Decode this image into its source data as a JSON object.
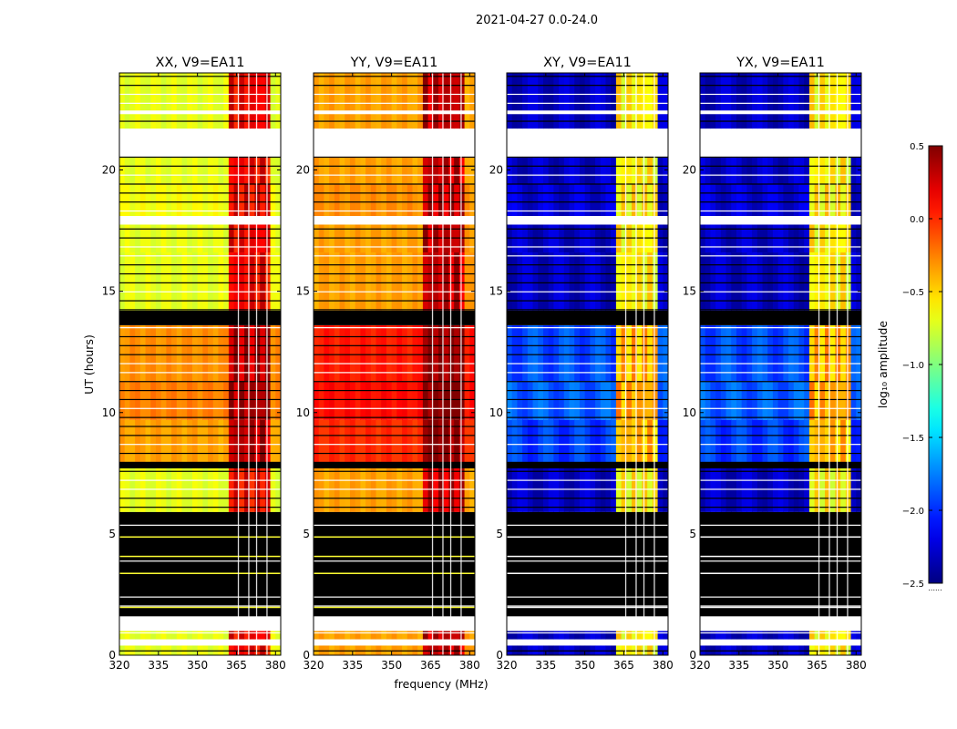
{
  "figure": {
    "suptitle": "2021-04-27 0.0-24.0",
    "xlabel": "frequency (MHz)",
    "ylabel": "UT (hours)",
    "colorbar_label": "log₁₀ amplitude",
    "colorbar_footer": "......"
  },
  "chart_data": {
    "type": "heatmap",
    "colormap": "jet",
    "x": {
      "label": "frequency (MHz)",
      "range": [
        320,
        382
      ],
      "ticks": [
        320,
        335,
        350,
        365,
        380
      ],
      "tick_labels": [
        "320",
        "335",
        "350",
        "365",
        "380"
      ]
    },
    "y": {
      "label": "UT (hours)",
      "range": [
        0,
        24
      ],
      "ticks": [
        0,
        5,
        10,
        15,
        20
      ],
      "tick_labels": [
        "0",
        "5",
        "10",
        "15",
        "20"
      ]
    },
    "colorbar": {
      "label": "log₁₀ amplitude",
      "range": [
        -2.5,
        0.5
      ],
      "ticks": [
        0.5,
        0.0,
        -0.5,
        -1.0,
        -1.5,
        -2.0,
        -2.5
      ],
      "tick_labels": [
        "0.5",
        "0.0",
        "−0.5",
        "−1.0",
        "−1.5",
        "−2.0",
        "−2.5"
      ]
    },
    "panels": [
      {
        "title": "XX, V9=EA11",
        "pol": "XX",
        "base_level": -0.7,
        "rfi_level": 0.15
      },
      {
        "title": "YY, V9=EA11",
        "pol": "YY",
        "base_level": -0.35,
        "rfi_level": 0.3
      },
      {
        "title": "XY, V9=EA11",
        "pol": "XY",
        "base_level": -2.3,
        "rfi_level": -0.6
      },
      {
        "title": "YX, V9=EA11",
        "pol": "YX",
        "base_level": -2.3,
        "rfi_level": -0.6
      }
    ],
    "rfi_band_mhz": [
      363,
      377
    ],
    "rfi_gap_lines_mhz": [
      365.5,
      369.5,
      372.5,
      376.5
    ],
    "no_data_hours": [
      [
        0.4,
        0.65
      ],
      [
        1.0,
        1.6
      ],
      [
        20.55,
        21.7
      ],
      [
        22.3,
        22.45
      ],
      [
        17.75,
        18.1
      ]
    ],
    "flagged_hours": [
      [
        1.6,
        5.9
      ],
      [
        13.6,
        14.2
      ],
      [
        7.7,
        7.95
      ]
    ],
    "segment_levels": [
      {
        "t": [
          0.0,
          0.4
        ],
        "offset": 0.0
      },
      {
        "t": [
          0.65,
          1.0
        ],
        "offset": 0.0
      },
      {
        "t": [
          5.9,
          7.7
        ],
        "offset": 0.0
      },
      {
        "t": [
          7.95,
          9.7
        ],
        "offset": 0.35
      },
      {
        "t": [
          9.7,
          11.3
        ],
        "offset": 0.45
      },
      {
        "t": [
          11.3,
          13.6
        ],
        "offset": 0.4
      },
      {
        "t": [
          14.2,
          16.6
        ],
        "offset": 0.0
      },
      {
        "t": [
          16.6,
          17.75
        ],
        "offset": 0.0
      },
      {
        "t": [
          18.1,
          19.4
        ],
        "offset": 0.05
      },
      {
        "t": [
          19.4,
          20.55
        ],
        "offset": 0.0
      },
      {
        "t": [
          21.7,
          24.0
        ],
        "offset": 0.0
      }
    ]
  }
}
